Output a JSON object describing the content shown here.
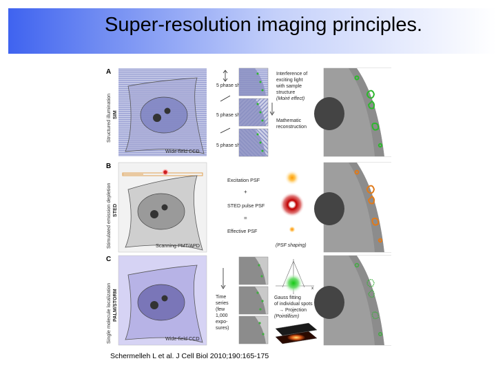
{
  "title": "Super-resolution imaging principles.",
  "caption": "Schermelleh L et al. J Cell Biol 2010;190:165-175",
  "colors": {
    "title_gradient_start": "#3f63f0",
    "sim_spots": "#2db82d",
    "sted_spots": "#e07a1a",
    "palm_spots": "#3fae3f",
    "sted_dot": "#cc1f1f"
  },
  "panels": {
    "A": {
      "letter": "A",
      "side_label": "Structured illumination",
      "side_label_bold": "SIM",
      "camera_label": "Wide-field CCD",
      "phase_labels": [
        "5 phase shifts",
        "5 phase shifts",
        "5 phase shifts"
      ],
      "right_text_1": [
        "Interference of",
        "exciting light",
        "with sample",
        "structure",
        "(Moiré effect)"
      ],
      "right_text_2": [
        "Mathematic",
        "reconstruction"
      ]
    },
    "B": {
      "letter": "B",
      "side_label": "Stimulated emission depletion",
      "side_label_bold": "STED",
      "detector_label": "Scanning PMT/APD",
      "excitation_label": "Excitation PSF",
      "plus_sign": "+",
      "sted_label": "STED pulse PSF",
      "equals_sign": "=",
      "effective_label": "Effective PSF",
      "psf_shaping": "(PSF shaping)"
    },
    "C": {
      "letter": "C",
      "side_label": "Single molecule localization",
      "side_label_bold": "PALM/STORM",
      "camera_label": "Wide-field CCD",
      "time_series": [
        "Time",
        "series",
        "(few",
        "1,000",
        "expo-",
        "sures)"
      ],
      "axis_x": "x",
      "gauss_text": [
        "Gauss fitting",
        "of individual spots",
        "→ Projection",
        "(Pointillism)"
      ]
    }
  }
}
